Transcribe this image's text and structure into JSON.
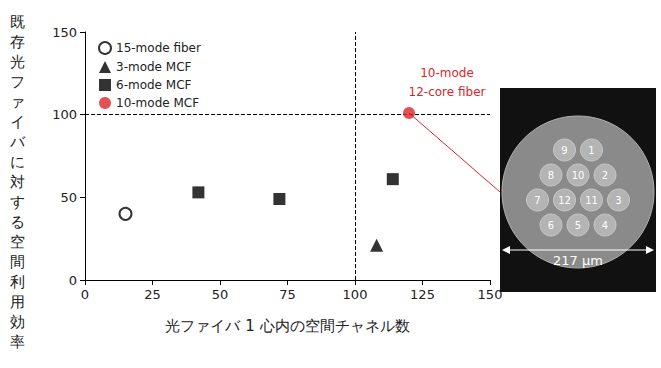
{
  "chart_data": {
    "type": "scatter",
    "x_label": "光ファイバ 1 心内の空間チャネル数",
    "y_label": "既存光ファイバに対する空間利用効率",
    "xlim": [
      0,
      150
    ],
    "xticks": [
      0,
      25,
      50,
      75,
      100,
      125,
      150
    ],
    "ylim": [
      0,
      150
    ],
    "yticks": [
      0,
      50,
      100,
      150
    ],
    "grid": false,
    "legend": "upper left",
    "reference_lines": {
      "x": [
        100
      ],
      "y": [
        100
      ]
    },
    "series": [
      {
        "name": "15-mode fiber",
        "color": "#000000",
        "marker": "open_circle",
        "x": [
          15
        ],
        "values": [
          40
        ]
      },
      {
        "name": "3-mode MCF",
        "color": "#000000",
        "marker": "triangle",
        "x": [
          108
        ],
        "values": [
          21
        ]
      },
      {
        "name": "6-mode MCF",
        "color": "#000000",
        "marker": "square",
        "x": [
          42,
          72,
          114
        ],
        "values": [
          53,
          49,
          61
        ]
      },
      {
        "name": "10-mode MCF",
        "color": "#d9262c",
        "marker": "circle",
        "x": [
          120
        ],
        "values": [
          101
        ]
      }
    ],
    "annotations": [
      {
        "text": "10-mode\n12-core fiber",
        "series": "10-mode MCF",
        "color": "#d9262c"
      }
    ],
    "inset": {
      "core_labels": [
        "9",
        "1",
        "8",
        "10",
        "2",
        "7",
        "12",
        "11",
        "3",
        "6",
        "5",
        "4"
      ],
      "width_label": "217 μm"
    }
  }
}
